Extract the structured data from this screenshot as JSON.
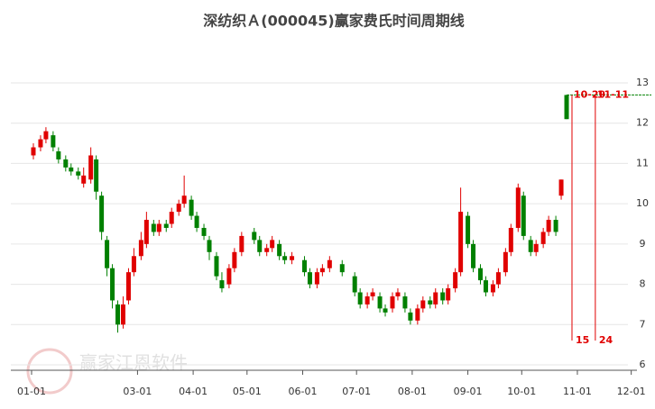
{
  "chart_data": {
    "type": "candlestick",
    "title": "深纺织Ａ(000045)赢家费氏时间周期线",
    "watermark": "赢家江恩软件",
    "up_color": "#e00000",
    "down_color": "#008000",
    "ylim": [
      6,
      13
    ],
    "yticks": [
      6,
      7,
      8,
      9,
      10,
      11,
      12,
      13
    ],
    "grid": true,
    "xticks": [
      "01-01",
      "03-01",
      "04-01",
      "05-01",
      "06-01",
      "07-01",
      "08-01",
      "09-01",
      "10-01",
      "11-01",
      "12-01"
    ],
    "x": [
      "01-02",
      "01-06",
      "01-09",
      "01-13",
      "01-16",
      "01-20",
      "01-23",
      "01-27",
      "01-30",
      "02-03",
      "02-06",
      "02-09",
      "02-12",
      "02-15",
      "02-18",
      "02-21",
      "02-24",
      "02-27",
      "03-03",
      "03-06",
      "03-10",
      "03-13",
      "03-17",
      "03-20",
      "03-24",
      "03-27",
      "03-31",
      "04-03",
      "04-07",
      "04-10",
      "04-14",
      "04-17",
      "04-21",
      "04-24",
      "04-28",
      "05-05",
      "05-08",
      "05-12",
      "05-15",
      "05-19",
      "05-22",
      "05-26",
      "06-02",
      "06-05",
      "06-09",
      "06-12",
      "06-16",
      "06-23",
      "06-30",
      "07-03",
      "07-07",
      "07-10",
      "07-14",
      "07-17",
      "07-21",
      "07-24",
      "07-28",
      "07-31",
      "08-04",
      "08-07",
      "08-11",
      "08-14",
      "08-18",
      "08-21",
      "08-25",
      "08-28",
      "09-01",
      "09-04",
      "09-08",
      "09-11",
      "09-15",
      "09-18",
      "09-22",
      "09-25",
      "09-29",
      "10-02",
      "10-06",
      "10-09",
      "10-13",
      "10-16",
      "10-20",
      "10-23",
      "10-26"
    ],
    "open": [
      11.2,
      11.4,
      11.6,
      11.7,
      11.3,
      11.1,
      10.9,
      10.8,
      10.5,
      10.6,
      11.1,
      10.2,
      9.1,
      8.4,
      7.5,
      7.0,
      7.6,
      8.3,
      8.7,
      9.0,
      9.5,
      9.3,
      9.5,
      9.5,
      9.8,
      10.0,
      10.1,
      9.7,
      9.4,
      9.1,
      8.7,
      8.1,
      8.0,
      8.4,
      8.8,
      9.3,
      9.1,
      8.8,
      8.9,
      9.0,
      8.7,
      8.6,
      8.6,
      8.3,
      8.0,
      8.3,
      8.4,
      8.5,
      8.2,
      7.8,
      7.5,
      7.7,
      7.7,
      7.4,
      7.4,
      7.7,
      7.7,
      7.3,
      7.1,
      7.4,
      7.6,
      7.5,
      7.8,
      7.6,
      7.9,
      8.3,
      9.7,
      9.0,
      8.4,
      8.1,
      7.8,
      8.0,
      8.3,
      8.8,
      9.4,
      10.2,
      9.1,
      8.8,
      9.0,
      9.3,
      9.6,
      10.2,
      12.7
    ],
    "close": [
      11.4,
      11.6,
      11.8,
      11.4,
      11.1,
      10.9,
      10.8,
      10.7,
      10.7,
      11.2,
      10.3,
      9.3,
      8.4,
      7.6,
      7.0,
      7.5,
      8.3,
      8.7,
      9.1,
      9.6,
      9.3,
      9.5,
      9.4,
      9.8,
      10.0,
      10.2,
      9.7,
      9.4,
      9.2,
      8.8,
      8.2,
      7.9,
      8.4,
      8.8,
      9.2,
      9.1,
      8.8,
      8.9,
      9.1,
      8.7,
      8.6,
      8.7,
      8.3,
      8.0,
      8.3,
      8.4,
      8.6,
      8.3,
      7.8,
      7.5,
      7.7,
      7.8,
      7.4,
      7.3,
      7.7,
      7.8,
      7.4,
      7.1,
      7.4,
      7.6,
      7.5,
      7.8,
      7.6,
      7.9,
      8.3,
      9.8,
      9.0,
      8.4,
      8.1,
      7.8,
      8.0,
      8.3,
      8.8,
      9.4,
      10.4,
      9.2,
      8.8,
      9.0,
      9.3,
      9.6,
      9.3,
      10.6,
      12.1
    ],
    "high": [
      11.5,
      11.7,
      11.9,
      11.8,
      11.4,
      11.2,
      11.0,
      10.9,
      10.9,
      11.4,
      11.2,
      10.3,
      9.2,
      8.5,
      7.6,
      7.7,
      8.4,
      8.9,
      9.3,
      9.8,
      9.6,
      9.6,
      9.6,
      9.9,
      10.1,
      10.7,
      10.2,
      9.8,
      9.5,
      9.2,
      8.8,
      8.3,
      8.5,
      8.9,
      9.3,
      9.4,
      9.2,
      9.0,
      9.2,
      9.1,
      8.8,
      8.8,
      8.7,
      8.4,
      8.4,
      8.5,
      8.7,
      8.6,
      8.3,
      7.9,
      7.8,
      7.9,
      7.8,
      7.5,
      7.8,
      7.9,
      7.8,
      7.4,
      7.5,
      7.7,
      7.7,
      7.9,
      7.9,
      8.0,
      8.4,
      10.4,
      9.8,
      9.1,
      8.5,
      8.2,
      8.1,
      8.4,
      8.9,
      9.5,
      10.5,
      10.3,
      9.2,
      9.1,
      9.4,
      9.7,
      9.7,
      10.6,
      12.7
    ],
    "low": [
      11.1,
      11.3,
      11.5,
      11.3,
      11.0,
      10.8,
      10.7,
      10.6,
      10.4,
      10.5,
      10.1,
      9.1,
      8.2,
      7.4,
      6.8,
      6.9,
      7.5,
      8.2,
      8.6,
      8.9,
      9.2,
      9.2,
      9.3,
      9.4,
      9.7,
      9.9,
      9.6,
      9.3,
      9.1,
      8.6,
      8.1,
      7.8,
      7.9,
      8.3,
      8.7,
      9.0,
      8.7,
      8.7,
      8.8,
      8.6,
      8.5,
      8.5,
      8.2,
      7.9,
      7.9,
      8.2,
      8.3,
      8.2,
      7.7,
      7.4,
      7.4,
      7.6,
      7.3,
      7.2,
      7.3,
      7.6,
      7.3,
      7.0,
      7.0,
      7.3,
      7.4,
      7.4,
      7.5,
      7.5,
      7.8,
      8.2,
      8.9,
      8.3,
      8.0,
      7.7,
      7.7,
      7.9,
      8.2,
      8.7,
      9.3,
      9.1,
      8.7,
      8.7,
      8.9,
      9.2,
      9.2,
      10.1,
      12.1
    ],
    "level": 12.7,
    "cycle_lines": [
      {
        "x": "10-29",
        "count": 15
      },
      {
        "x": "11-11",
        "count": 24
      }
    ]
  }
}
